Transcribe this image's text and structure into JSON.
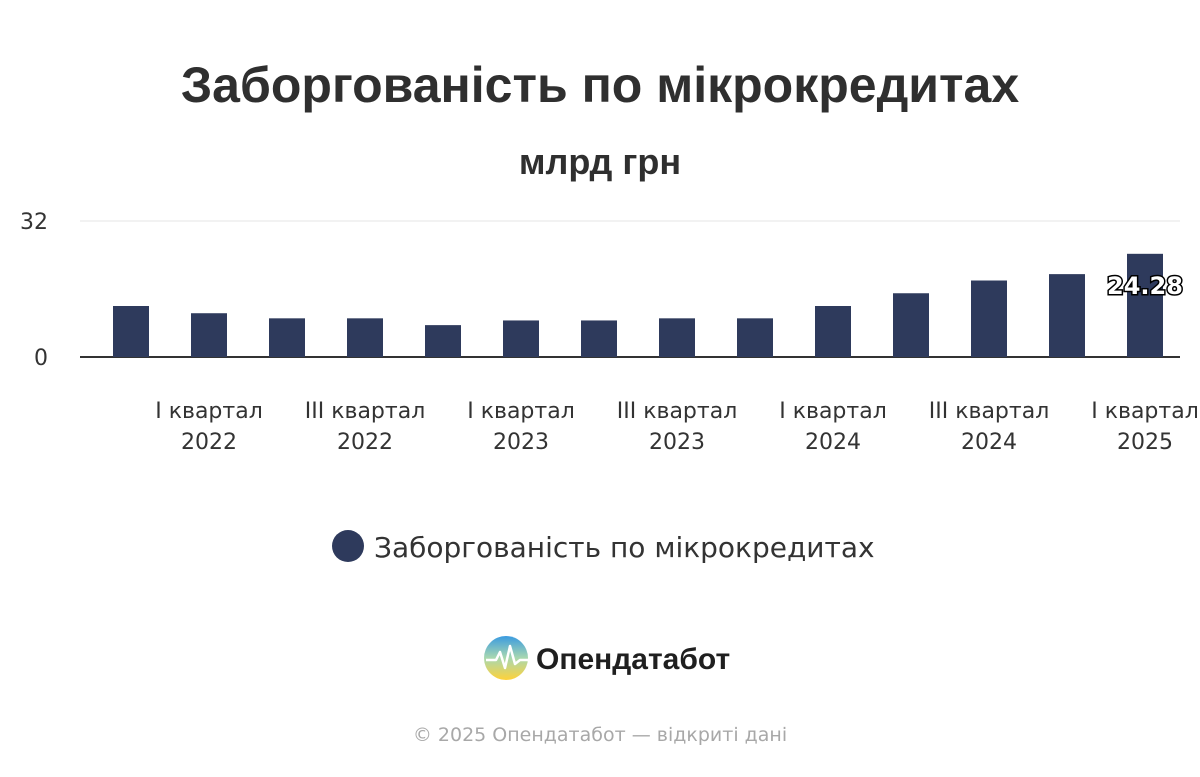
{
  "chart_data": {
    "type": "bar",
    "title": "Заборгованість по мікрокредитах",
    "subtitle": "млрд грн",
    "categories": [
      "",
      "I квартал 2022",
      "",
      "III квартал 2022",
      "",
      "I квартал 2023",
      "",
      "III квартал 2023",
      "",
      "I квартал 2024",
      "",
      "III квартал 2024",
      "",
      "I квартал 2025"
    ],
    "series": [
      {
        "name": "Заборгованість по мікрокредитах",
        "color": "#2e3a5c",
        "values": [
          12.0,
          10.3,
          9.1,
          9.1,
          7.5,
          8.6,
          8.6,
          9.1,
          9.1,
          12.0,
          15.0,
          18.0,
          19.5,
          24.28
        ]
      }
    ],
    "y_ticks": [
      0,
      32
    ],
    "ylim": [
      0,
      32
    ],
    "data_labels": [
      {
        "index": 13,
        "text": "24.28"
      }
    ],
    "legend_position": "bottom-center"
  },
  "branding": {
    "name": "Опендатабот"
  },
  "footer": {
    "text": "© 2025 Опендатабот — відкриті дані"
  }
}
